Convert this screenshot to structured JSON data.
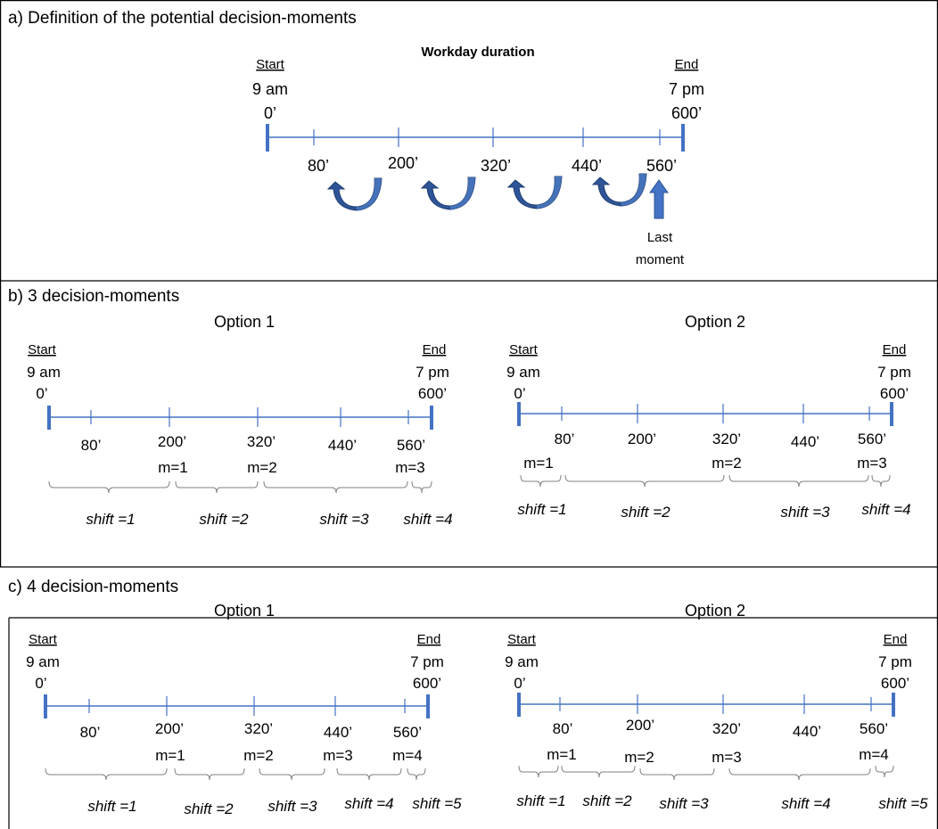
{
  "colors": {
    "axis": "#4472c4",
    "tick": "#4472c4",
    "endcap": "#4472c4",
    "arrow_fill": "#2e5597",
    "arrow_light": "#4f80c8",
    "brace": "#808080",
    "border": "#000000"
  },
  "icons": [
    "curved-arrow-icon",
    "up-arrow-icon",
    "brace-icon"
  ],
  "panel_a": {
    "title": "a) Definition of the potential decision-moments",
    "subtitle": "Workday duration",
    "start_label": "Start",
    "start_time": "9 am",
    "start_min": "0’",
    "end_label": "End",
    "end_time": "7 pm",
    "end_min": "600’",
    "ticks": [
      "80’",
      "200’",
      "320’",
      "440’",
      "560’"
    ],
    "last_moment_line1": "Last",
    "last_moment_line2": "moment"
  },
  "panel_b": {
    "title": "b) 3 decision-moments",
    "options": [
      {
        "label": "Option 1",
        "start_label": "Start",
        "start_time": "9 am",
        "start_min": "0’",
        "end_label": "End",
        "end_time": "7 pm",
        "end_min": "600’",
        "ticks": [
          "80’",
          "200’",
          "320’",
          "440’",
          "560’"
        ],
        "moments": [
          "m=1",
          "m=2",
          "m=3"
        ],
        "shifts": [
          "shift =1",
          "shift =2",
          "shift =3",
          "shift =4"
        ]
      },
      {
        "label": "Option 2",
        "start_label": "Start",
        "start_time": "9 am",
        "start_min": "0’",
        "end_label": "End",
        "end_time": "7 pm",
        "end_min": "600’",
        "ticks": [
          "80’",
          "200’",
          "320’",
          "440’",
          "560’"
        ],
        "moments": [
          "m=1",
          "m=2",
          "m=3"
        ],
        "shifts": [
          "shift =1",
          "shift =2",
          "shift =3",
          "shift =4"
        ]
      }
    ]
  },
  "panel_c": {
    "title": "c) 4 decision-moments",
    "options": [
      {
        "label": "Option 1",
        "start_label": "Start",
        "start_time": "9 am",
        "start_min": "0’",
        "end_label": "End",
        "end_time": "7 pm",
        "end_min": "600’",
        "ticks": [
          "80’",
          "200’",
          "320’",
          "440’",
          "560’"
        ],
        "moments": [
          "m=1",
          "m=2",
          "m=3",
          "m=4"
        ],
        "shifts": [
          "shift =1",
          "shift =2",
          "shift =3",
          "shift =4",
          "shift =5"
        ]
      },
      {
        "label": "Option 2",
        "start_label": "Start",
        "start_time": "9 am",
        "start_min": "0’",
        "end_label": "End",
        "end_time": "7 pm",
        "end_min": "600’",
        "ticks": [
          "80’",
          "200’",
          "320’",
          "440’",
          "560’"
        ],
        "moments": [
          "m=1",
          "m=2",
          "m=3",
          "m=4"
        ],
        "shifts": [
          "shift =1",
          "shift =2",
          "shift =3",
          "shift =4",
          "shift =5"
        ]
      }
    ]
  }
}
